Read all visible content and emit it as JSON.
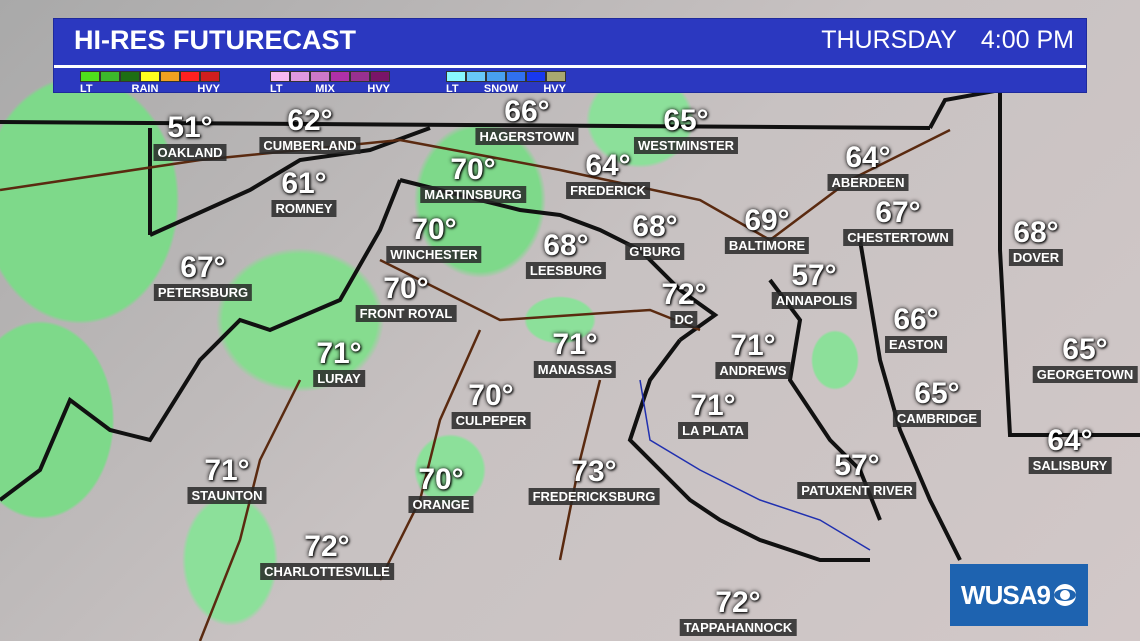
{
  "header": {
    "title": "HI-RES FUTURECAST",
    "day": "THURSDAY",
    "time": "4:00 PM"
  },
  "legend": [
    {
      "labels": [
        "LT",
        "RAIN",
        "HVY"
      ],
      "colors": [
        "#4fe01c",
        "#3cb82c",
        "#1e6e14",
        "#ffff1e",
        "#f0a020",
        "#ff2020",
        "#d01e1e"
      ]
    },
    {
      "labels": [
        "LT",
        "MIX",
        "HVY"
      ],
      "colors": [
        "#f8b8f0",
        "#e098e0",
        "#cc78c8",
        "#b030a8",
        "#983090",
        "#7a1468"
      ]
    },
    {
      "labels": [
        "LT",
        "SNOW",
        "HVY"
      ],
      "colors": [
        "#88f8ff",
        "#68c8f8",
        "#48a0f0",
        "#3070f0",
        "#1838f0",
        "#a8a870"
      ]
    }
  ],
  "cities": [
    {
      "name": "OAKLAND",
      "temp": "51°"
    },
    {
      "name": "CUMBERLAND",
      "temp": "62°"
    },
    {
      "name": "HAGERSTOWN",
      "temp": "66°"
    },
    {
      "name": "WESTMINSTER",
      "temp": "65°"
    },
    {
      "name": "ROMNEY",
      "temp": "61°"
    },
    {
      "name": "MARTINSBURG",
      "temp": "70°"
    },
    {
      "name": "FREDERICK",
      "temp": "64°"
    },
    {
      "name": "WINCHESTER",
      "temp": "70°"
    },
    {
      "name": "LEESBURG",
      "temp": "68°"
    },
    {
      "name": "G'BURG",
      "temp": "68°"
    },
    {
      "name": "BALTIMORE",
      "temp": "69°"
    },
    {
      "name": "ABERDEEN",
      "temp": "64°"
    },
    {
      "name": "CHESTERTOWN",
      "temp": "67°"
    },
    {
      "name": "DOVER",
      "temp": "68°"
    },
    {
      "name": "PETERSBURG",
      "temp": "67°"
    },
    {
      "name": "FRONT ROYAL",
      "temp": "70°"
    },
    {
      "name": "DC",
      "temp": "72°"
    },
    {
      "name": "ANNAPOLIS",
      "temp": "57°"
    },
    {
      "name": "EASTON",
      "temp": "66°"
    },
    {
      "name": "LURAY",
      "temp": "71°"
    },
    {
      "name": "MANASSAS",
      "temp": "71°"
    },
    {
      "name": "ANDREWS",
      "temp": "71°"
    },
    {
      "name": "GEORGETOWN",
      "temp": "65°"
    },
    {
      "name": "CULPEPER",
      "temp": "70°"
    },
    {
      "name": "LA PLATA",
      "temp": "71°"
    },
    {
      "name": "CAMBRIDGE",
      "temp": "65°"
    },
    {
      "name": "SALISBURY",
      "temp": "64°"
    },
    {
      "name": "STAUNTON",
      "temp": "71°"
    },
    {
      "name": "ORANGE",
      "temp": "70°"
    },
    {
      "name": "FREDERICKSBURG",
      "temp": "73°"
    },
    {
      "name": "PATUXENT RIVER",
      "temp": "57°"
    },
    {
      "name": "CHARLOTTESVILLE",
      "temp": "72°"
    },
    {
      "name": "TAPPAHANNOCK",
      "temp": "72°"
    }
  ],
  "logo": {
    "text": "WUSA9"
  }
}
